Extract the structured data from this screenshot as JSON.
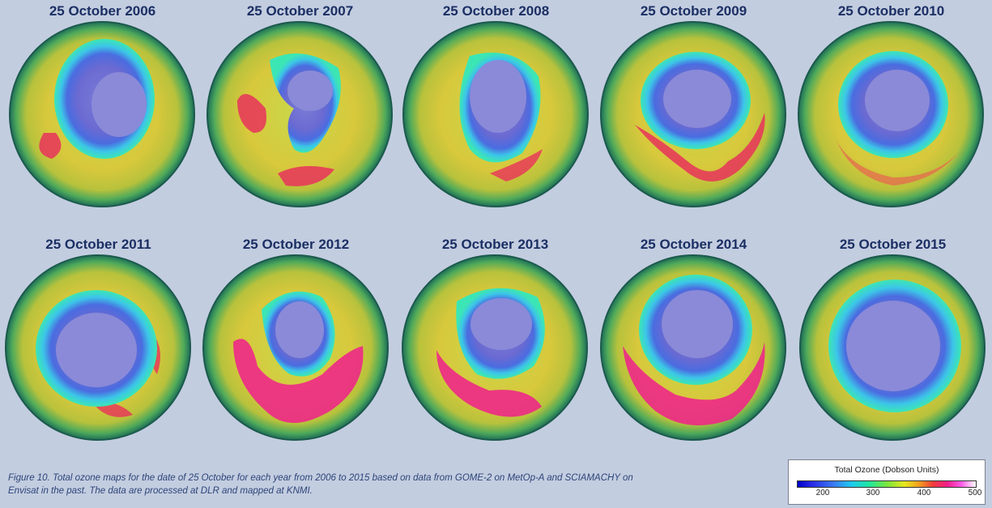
{
  "maps": [
    {
      "title": "25 October 2006"
    },
    {
      "title": "25 October 2007"
    },
    {
      "title": "25 October 2008"
    },
    {
      "title": "25 October 2009"
    },
    {
      "title": "25 October 2010"
    },
    {
      "title": "25 October 2011"
    },
    {
      "title": "25 October 2012"
    },
    {
      "title": "25 October 2013"
    },
    {
      "title": "25 October 2014"
    },
    {
      "title": "25 October 2015"
    }
  ],
  "caption": {
    "line1": "Figure 10. Total ozone maps for the date of 25 October for each year from 2006 to 2015 based on data from GOME-2 on MetOp-A and SCIAMACHY on",
    "line2": "Envisat in the past. The data are processed at DLR and mapped at KNMI."
  },
  "legend": {
    "title": "Total Ozone (Dobson Units)",
    "ticks": [
      "200",
      "300",
      "400",
      "500"
    ]
  }
}
